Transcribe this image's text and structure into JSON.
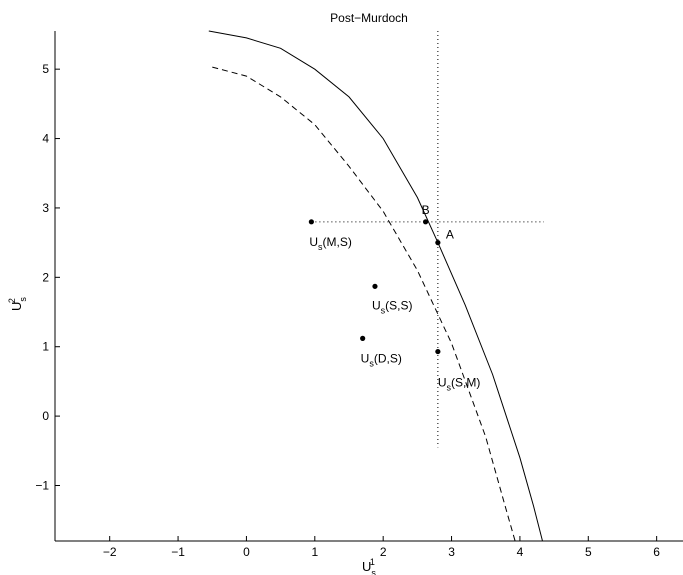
{
  "chart_data": {
    "type": "line",
    "title": "Post−Murdoch",
    "xlabel": {
      "base": "U",
      "sub": "s",
      "sup": "1"
    },
    "ylabel": {
      "base": "U",
      "sub": "s",
      "sup": "2"
    },
    "xlim": [
      -2.8,
      6.4
    ],
    "ylim": [
      -1.8,
      5.55
    ],
    "xticks": [
      -2,
      -1,
      0,
      1,
      2,
      3,
      4,
      5,
      6
    ],
    "yticks": [
      -1,
      0,
      1,
      2,
      3,
      4,
      5
    ],
    "xtick_labels": [
      "−2",
      "−1",
      "0",
      "1",
      "2",
      "3",
      "4",
      "5",
      "6"
    ],
    "ytick_labels": [
      "−1",
      "0",
      "1",
      "2",
      "3",
      "4",
      "5"
    ],
    "grid": false,
    "series": [
      {
        "style": "solid",
        "x": [
          -0.55,
          0.0,
          0.5,
          1.0,
          1.5,
          2.0,
          2.5,
          2.8,
          3.2,
          3.6,
          4.0,
          4.2,
          4.33
        ],
        "y": [
          5.55,
          5.45,
          5.3,
          5.0,
          4.6,
          4.0,
          3.15,
          2.5,
          1.6,
          0.6,
          -0.6,
          -1.3,
          -1.8
        ]
      },
      {
        "style": "dashed",
        "x": [
          -0.5,
          0.0,
          0.5,
          1.0,
          1.5,
          2.0,
          2.5,
          3.0,
          3.5,
          3.8,
          3.93
        ],
        "y": [
          5.03,
          4.9,
          4.6,
          4.2,
          3.6,
          2.95,
          2.1,
          1.05,
          -0.3,
          -1.35,
          -1.8
        ]
      }
    ],
    "reference_lines": [
      {
        "orientation": "vertical",
        "x": 2.8,
        "y_range": [
          -0.45,
          5.55
        ]
      },
      {
        "orientation": "horizontal",
        "y": 2.8,
        "x_range": [
          0.95,
          4.35
        ]
      }
    ],
    "points": [
      {
        "x": 0.95,
        "y": 2.8,
        "label": {
          "base": "U",
          "sub": "s",
          "rest": "(M,S)"
        }
      },
      {
        "x": 1.88,
        "y": 1.87,
        "label": {
          "base": "U",
          "sub": "s",
          "rest": "(S,S)"
        }
      },
      {
        "x": 1.7,
        "y": 1.12,
        "label": {
          "base": "U",
          "sub": "s",
          "rest": "(D,S)"
        }
      },
      {
        "x": 2.8,
        "y": 0.93,
        "label": {
          "base": "U",
          "sub": "s",
          "rest": "(S,M)"
        }
      },
      {
        "x": 2.62,
        "y": 2.8,
        "label": {
          "base": "B"
        }
      },
      {
        "x": 2.8,
        "y": 2.5,
        "label": {
          "base": "A"
        }
      }
    ]
  }
}
